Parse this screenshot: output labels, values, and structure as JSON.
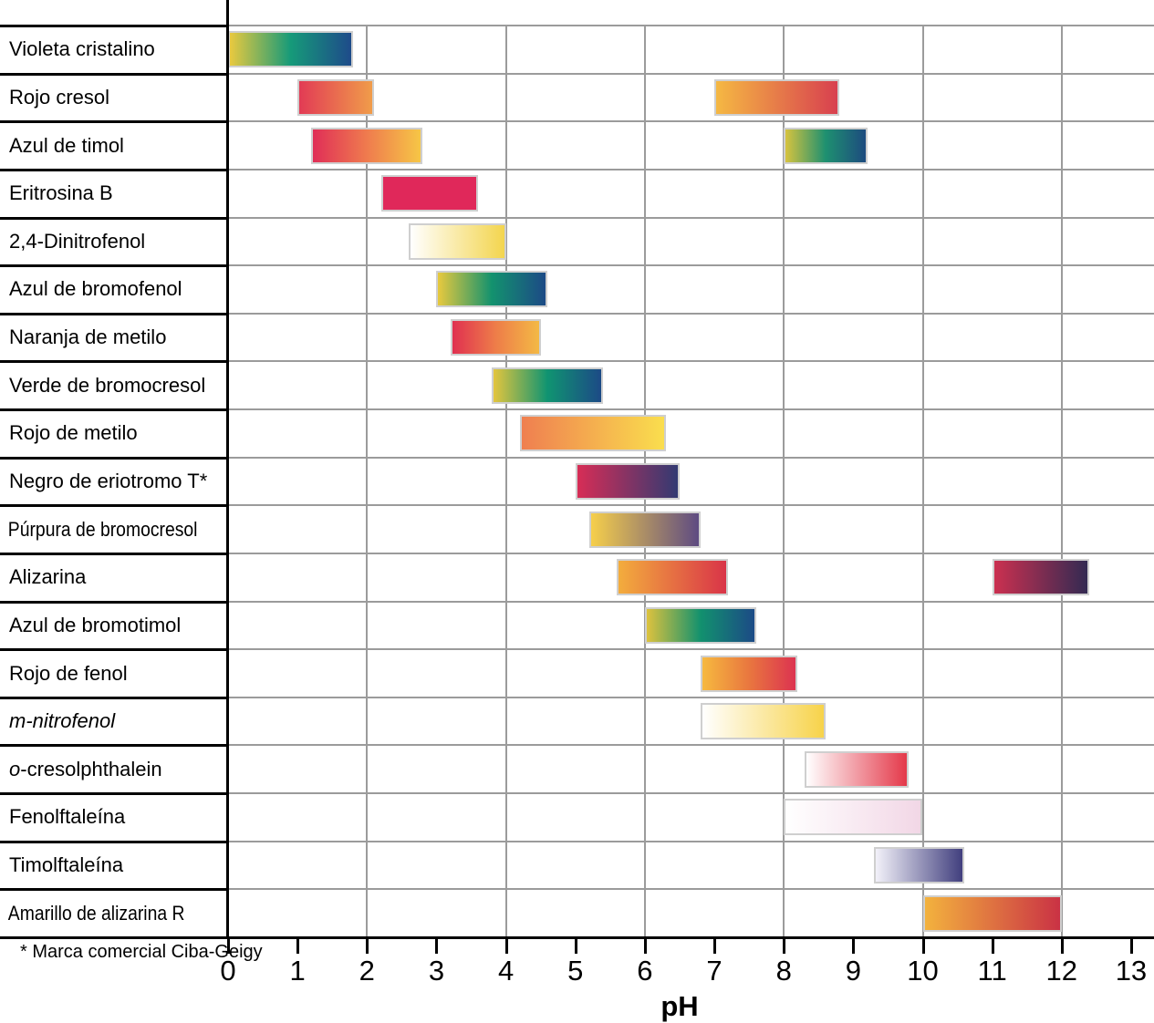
{
  "chart_data": {
    "type": "bar",
    "subtype": "ph-indicator-range-chart",
    "title": "",
    "xlabel": "pH",
    "xlim": [
      0,
      13
    ],
    "x_ticks": [
      "0",
      "1",
      "2",
      "3",
      "4",
      "5",
      "6",
      "7",
      "8",
      "9",
      "10",
      "11",
      "12",
      "13"
    ],
    "grid": "vertical lines every 2 pH units, horizontal line per indicator row",
    "legend_position": "none",
    "footnote": "* Marca comercial Ciba-Geigy",
    "gridline_color": "#9b9b9b",
    "axis_color": "#000000",
    "bar_border_color": "#cfcfcf",
    "indicators": [
      {
        "label": "Violeta cristalino",
        "bars": [
          {
            "from": 0,
            "to": 1.8,
            "colors": [
              "#e9c93f",
              "#169a79",
              "#1e4b8a"
            ]
          }
        ]
      },
      {
        "label": "Rojo cresol",
        "bars": [
          {
            "from": 1.0,
            "to": 2.1,
            "colors": [
              "#e23b55",
              "#f09c4a"
            ]
          },
          {
            "from": 7.0,
            "to": 8.8,
            "colors": [
              "#f5b843",
              "#d8404f"
            ]
          }
        ]
      },
      {
        "label": "Azul de timol",
        "bars": [
          {
            "from": 1.2,
            "to": 2.8,
            "colors": [
              "#e02e57",
              "#ef7b4e",
              "#f6c646"
            ]
          },
          {
            "from": 8.0,
            "to": 9.2,
            "colors": [
              "#d6c33f",
              "#1e9070",
              "#1d4b7f"
            ]
          }
        ]
      },
      {
        "label": "Eritrosina B",
        "bars": [
          {
            "from": 2.2,
            "to": 3.6,
            "colors": [
              "#e0285a"
            ]
          }
        ]
      },
      {
        "label": "2,4-Dinitrofenol",
        "bars": [
          {
            "from": 2.6,
            "to": 4.0,
            "colors": [
              "#ffffff",
              "#f3d54e"
            ]
          }
        ]
      },
      {
        "label": "Azul de bromofenol",
        "bars": [
          {
            "from": 3.0,
            "to": 4.6,
            "colors": [
              "#e8c93e",
              "#13926e",
              "#1c4a86"
            ]
          }
        ]
      },
      {
        "label": "Naranja de metilo",
        "bars": [
          {
            "from": 3.2,
            "to": 4.5,
            "colors": [
              "#e03050",
              "#ee7d49",
              "#f3b945"
            ]
          }
        ]
      },
      {
        "label": "Verde de bromocresol",
        "bars": [
          {
            "from": 3.8,
            "to": 5.4,
            "colors": [
              "#e3c53e",
              "#109471",
              "#1c4a86"
            ]
          }
        ]
      },
      {
        "label": "Rojo de metilo",
        "bars": [
          {
            "from": 4.2,
            "to": 6.3,
            "colors": [
              "#ef7f50",
              "#fade4e"
            ]
          }
        ]
      },
      {
        "label": "Negro de eriotromo T*",
        "bars": [
          {
            "from": 5.0,
            "to": 6.5,
            "colors": [
              "#d72d56",
              "#333a72"
            ]
          }
        ]
      },
      {
        "label": "Púrpura de bromocresol",
        "bars": [
          {
            "from": 5.2,
            "to": 6.8,
            "colors": [
              "#f6cf4b",
              "#5e4b82"
            ]
          }
        ]
      },
      {
        "label": "Alizarina",
        "bars": [
          {
            "from": 5.6,
            "to": 7.2,
            "colors": [
              "#f3ad3d",
              "#d93448"
            ]
          },
          {
            "from": 11.0,
            "to": 12.4,
            "colors": [
              "#cb3050",
              "#332a52"
            ]
          }
        ]
      },
      {
        "label": "Azul de bromotimol",
        "bars": [
          {
            "from": 6.0,
            "to": 7.6,
            "colors": [
              "#ddc23e",
              "#12916e",
              "#1c4a86"
            ]
          }
        ]
      },
      {
        "label": "Rojo de fenol",
        "bars": [
          {
            "from": 6.8,
            "to": 8.2,
            "colors": [
              "#f6b93f",
              "#e9773f",
              "#dc3350"
            ]
          }
        ]
      },
      {
        "label": "m-nitrofenol",
        "italic": "full",
        "bars": [
          {
            "from": 6.8,
            "to": 8.6,
            "colors": [
              "#ffffff",
              "#f7d34a"
            ]
          }
        ]
      },
      {
        "label": "o-cresolphthalein",
        "italic": "first",
        "bars": [
          {
            "from": 8.3,
            "to": 9.8,
            "colors": [
              "#ffffff",
              "#e4394a"
            ]
          }
        ]
      },
      {
        "label": "Fenolftaleína",
        "bars": [
          {
            "from": 8.0,
            "to": 10.0,
            "colors": [
              "#ffffff",
              "#f2d7e6"
            ]
          }
        ]
      },
      {
        "label": "Timolftaleína",
        "bars": [
          {
            "from": 9.3,
            "to": 10.6,
            "colors": [
              "#f2f1f9",
              "#413f7e"
            ]
          }
        ]
      },
      {
        "label": "Amarillo de alizarina R",
        "bars": [
          {
            "from": 10.0,
            "to": 12.0,
            "colors": [
              "#f3b23e",
              "#ca3244"
            ]
          }
        ]
      }
    ]
  }
}
